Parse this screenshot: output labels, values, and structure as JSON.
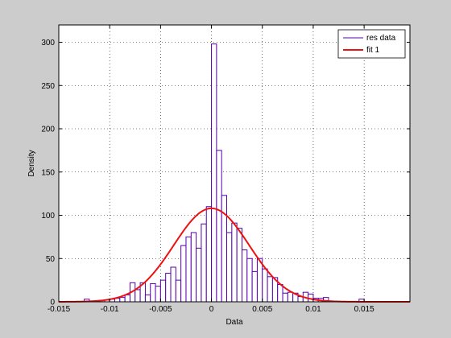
{
  "figure": {
    "background": "#cccccc"
  },
  "chart_data": {
    "type": "bar",
    "subtype": "histogram-with-fit",
    "title": "",
    "xlabel": "Data",
    "ylabel": "Density",
    "xlim": [
      -0.015,
      0.0195
    ],
    "ylim": [
      0,
      320
    ],
    "xticks": [
      -0.015,
      -0.01,
      -0.005,
      0,
      0.005,
      0.01,
      0.015
    ],
    "xtick_labels": [
      "-0.015",
      "-0.01",
      "-0.005",
      "0",
      "0.005",
      "0.01",
      "0.015"
    ],
    "yticks": [
      0,
      50,
      100,
      150,
      200,
      250,
      300
    ],
    "ytick_labels": [
      "0",
      "50",
      "100",
      "150",
      "200",
      "250",
      "300"
    ],
    "grid": true,
    "legend_position": "top-right",
    "series": [
      {
        "name": "res data",
        "kind": "histogram",
        "color": "#5500aa",
        "bins": [
          {
            "x0": -0.0125,
            "x1": -0.012,
            "y": 3
          },
          {
            "x0": -0.0105,
            "x1": -0.01,
            "y": 2
          },
          {
            "x0": -0.01,
            "x1": -0.0095,
            "y": 3
          },
          {
            "x0": -0.0095,
            "x1": -0.009,
            "y": 4
          },
          {
            "x0": -0.009,
            "x1": -0.0085,
            "y": 5
          },
          {
            "x0": -0.0085,
            "x1": -0.008,
            "y": 8
          },
          {
            "x0": -0.008,
            "x1": -0.0075,
            "y": 22
          },
          {
            "x0": -0.0075,
            "x1": -0.007,
            "y": 14
          },
          {
            "x0": -0.007,
            "x1": -0.0065,
            "y": 22
          },
          {
            "x0": -0.0065,
            "x1": -0.006,
            "y": 8
          },
          {
            "x0": -0.006,
            "x1": -0.0055,
            "y": 21
          },
          {
            "x0": -0.0055,
            "x1": -0.005,
            "y": 18
          },
          {
            "x0": -0.005,
            "x1": -0.0045,
            "y": 25
          },
          {
            "x0": -0.0045,
            "x1": -0.004,
            "y": 33
          },
          {
            "x0": -0.004,
            "x1": -0.0035,
            "y": 40
          },
          {
            "x0": -0.0035,
            "x1": -0.003,
            "y": 25
          },
          {
            "x0": -0.003,
            "x1": -0.0025,
            "y": 65
          },
          {
            "x0": -0.0025,
            "x1": -0.002,
            "y": 75
          },
          {
            "x0": -0.002,
            "x1": -0.0015,
            "y": 80
          },
          {
            "x0": -0.0015,
            "x1": -0.001,
            "y": 62
          },
          {
            "x0": -0.001,
            "x1": -0.0005,
            "y": 90
          },
          {
            "x0": -0.0005,
            "x1": 0.0,
            "y": 110
          },
          {
            "x0": 0.0,
            "x1": 0.0005,
            "y": 298
          },
          {
            "x0": 0.0005,
            "x1": 0.001,
            "y": 175
          },
          {
            "x0": 0.001,
            "x1": 0.0015,
            "y": 123
          },
          {
            "x0": 0.0015,
            "x1": 0.002,
            "y": 80
          },
          {
            "x0": 0.002,
            "x1": 0.0025,
            "y": 91
          },
          {
            "x0": 0.0025,
            "x1": 0.003,
            "y": 85
          },
          {
            "x0": 0.003,
            "x1": 0.0035,
            "y": 60
          },
          {
            "x0": 0.0035,
            "x1": 0.004,
            "y": 50
          },
          {
            "x0": 0.004,
            "x1": 0.0045,
            "y": 35
          },
          {
            "x0": 0.0045,
            "x1": 0.005,
            "y": 50
          },
          {
            "x0": 0.005,
            "x1": 0.0055,
            "y": 38
          },
          {
            "x0": 0.0055,
            "x1": 0.006,
            "y": 29
          },
          {
            "x0": 0.006,
            "x1": 0.0065,
            "y": 28
          },
          {
            "x0": 0.0065,
            "x1": 0.007,
            "y": 20
          },
          {
            "x0": 0.007,
            "x1": 0.0075,
            "y": 10
          },
          {
            "x0": 0.0075,
            "x1": 0.008,
            "y": 11
          },
          {
            "x0": 0.008,
            "x1": 0.0085,
            "y": 10
          },
          {
            "x0": 0.0085,
            "x1": 0.009,
            "y": 6
          },
          {
            "x0": 0.009,
            "x1": 0.0095,
            "y": 11
          },
          {
            "x0": 0.0095,
            "x1": 0.01,
            "y": 9
          },
          {
            "x0": 0.01,
            "x1": 0.0105,
            "y": 4
          },
          {
            "x0": 0.0105,
            "x1": 0.011,
            "y": 4
          },
          {
            "x0": 0.011,
            "x1": 0.0115,
            "y": 5
          },
          {
            "x0": 0.0145,
            "x1": 0.015,
            "y": 3
          }
        ]
      },
      {
        "name": "fit 1",
        "kind": "line",
        "color": "#ee1111",
        "distribution": "normal",
        "mean": 0.0,
        "sigma": 0.0037,
        "peak": 108
      }
    ]
  }
}
